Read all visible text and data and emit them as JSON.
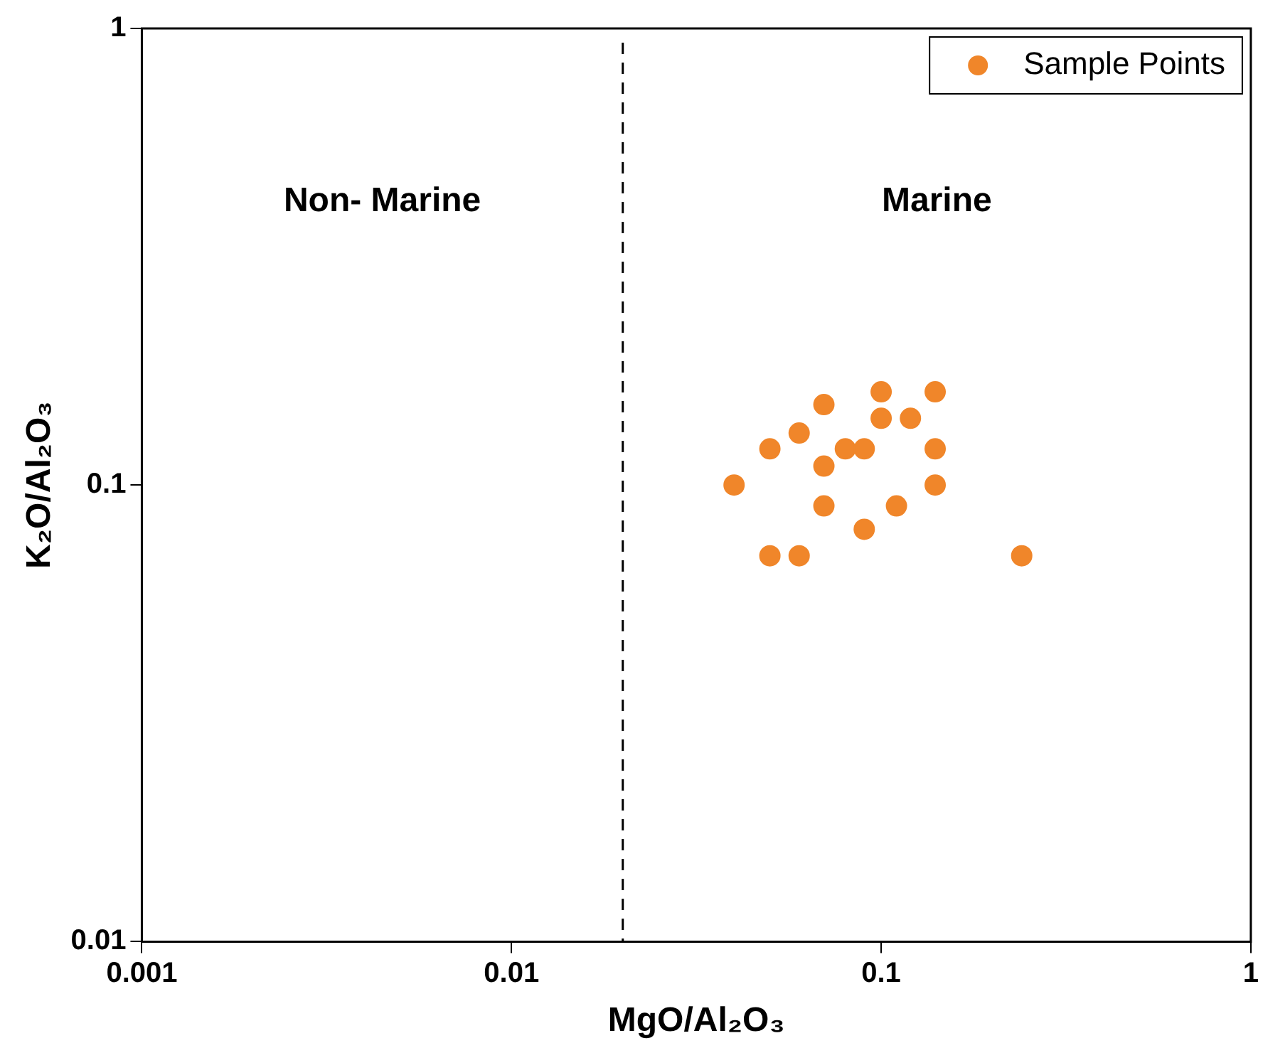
{
  "chart_data": {
    "type": "scatter",
    "xlabel": "MgO/Al₂O₃",
    "ylabel": "K₂O/Al₂O₃",
    "log": "xy",
    "xlim": [
      0.001,
      1
    ],
    "ylim": [
      0.01,
      1
    ],
    "xticks": [
      0.001,
      0.01,
      0.1,
      1
    ],
    "yticks": [
      0.01,
      0.1,
      1
    ],
    "grid": false,
    "legend": "top right",
    "marker": "circle",
    "ref_lines": [
      {
        "axis": "x",
        "value": 0.02,
        "line_style": "dashed",
        "color": "#000000"
      }
    ],
    "annotations": [
      "Non- Marine",
      "Marine"
    ],
    "series": [
      {
        "name": "Sample Points",
        "color": "#f0862a",
        "x": [
          0.04,
          0.05,
          0.05,
          0.06,
          0.06,
          0.07,
          0.07,
          0.07,
          0.08,
          0.09,
          0.09,
          0.1,
          0.1,
          0.12,
          0.11,
          0.14,
          0.14,
          0.14,
          0.24
        ],
        "values": [
          0.1,
          0.12,
          0.07,
          0.13,
          0.07,
          0.15,
          0.11,
          0.09,
          0.12,
          0.12,
          0.08,
          0.16,
          0.14,
          0.14,
          0.09,
          0.16,
          0.12,
          0.1,
          0.07
        ]
      }
    ]
  }
}
